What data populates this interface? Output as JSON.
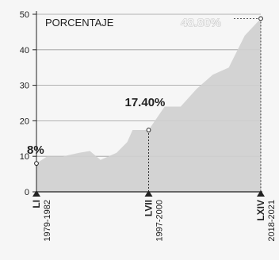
{
  "chart_data": {
    "type": "area",
    "legend_label": "PORCENTAJE",
    "xlim": [
      1979,
      2021
    ],
    "ylim": [
      0,
      50
    ],
    "y_ticks": [
      0,
      10,
      20,
      30,
      40,
      50
    ],
    "grid": true,
    "x": [
      1979,
      1981,
      1984,
      1987,
      1989,
      1991,
      1994,
      1996,
      1997,
      2000,
      2003,
      2006,
      2009,
      2012,
      2015,
      2018,
      2021
    ],
    "values": [
      8,
      10,
      10,
      11,
      11.5,
      9,
      11,
      14,
      17.4,
      17.4,
      24,
      24,
      29,
      33,
      35,
      44,
      48.8
    ],
    "markers": [
      {
        "x": 1979,
        "y": 8,
        "label": "8%",
        "roman": "LI",
        "years": "1979-1982"
      },
      {
        "x": 2000,
        "y": 17.4,
        "label": "17.40%",
        "roman": "LVII",
        "years": "1997-2000"
      },
      {
        "x": 2021,
        "y": 48.8,
        "label": "48.80%",
        "roman": "LXIV",
        "years": "2018-2021"
      }
    ]
  },
  "colors": {
    "area_fill": "#cfcfcf",
    "grid": "#9a9a9a",
    "axis": "#222222",
    "marker": "#222222"
  }
}
